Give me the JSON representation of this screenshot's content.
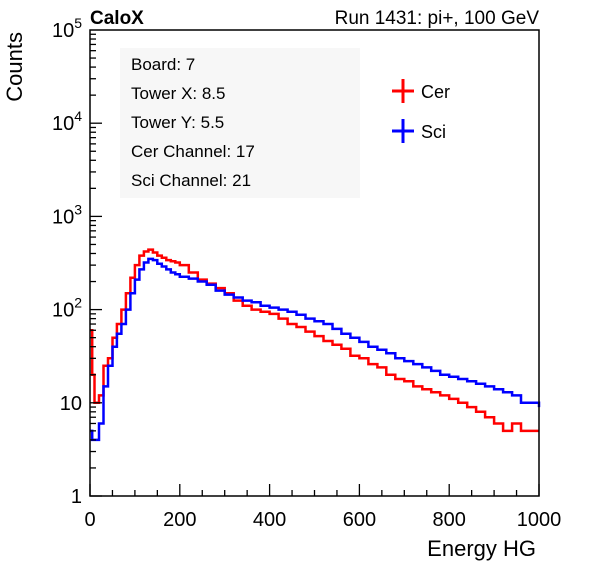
{
  "header": {
    "experiment": "CaloX",
    "run_info": "Run 1431: pi+, 100 GeV"
  },
  "info_box": [
    "Board: 7",
    "Tower X: 8.5",
    "Tower Y: 5.5",
    "Cer Channel: 17",
    "Sci Channel: 21"
  ],
  "chart_data": {
    "type": "line",
    "style": "step histogram",
    "title": "",
    "xlabel": "Energy HG",
    "ylabel": "Counts",
    "xlim": [
      0,
      1000
    ],
    "ylim": [
      1,
      100000
    ],
    "yscale": "log",
    "grid": false,
    "legend_position": "top-right",
    "x_ticks": [
      0,
      200,
      400,
      600,
      800,
      1000
    ],
    "y_ticks": [
      {
        "value": 1,
        "base": "1",
        "exp": ""
      },
      {
        "value": 10,
        "base": "10",
        "exp": ""
      },
      {
        "value": 100,
        "base": "10",
        "exp": "2"
      },
      {
        "value": 1000,
        "base": "10",
        "exp": "3"
      },
      {
        "value": 10000,
        "base": "10",
        "exp": "4"
      },
      {
        "value": 100000,
        "base": "10",
        "exp": "5"
      }
    ],
    "series": [
      {
        "name": "Cer",
        "color": "#ff0000",
        "points": [
          [
            0,
            60
          ],
          [
            5,
            20
          ],
          [
            10,
            10
          ],
          [
            20,
            12
          ],
          [
            30,
            25
          ],
          [
            40,
            30
          ],
          [
            50,
            50
          ],
          [
            60,
            70
          ],
          [
            70,
            100
          ],
          [
            80,
            150
          ],
          [
            90,
            220
          ],
          [
            100,
            300
          ],
          [
            110,
            380
          ],
          [
            120,
            420
          ],
          [
            130,
            440
          ],
          [
            140,
            410
          ],
          [
            150,
            380
          ],
          [
            160,
            360
          ],
          [
            170,
            340
          ],
          [
            180,
            330
          ],
          [
            190,
            320
          ],
          [
            200,
            300
          ],
          [
            220,
            250
          ],
          [
            240,
            210
          ],
          [
            260,
            190
          ],
          [
            280,
            170
          ],
          [
            300,
            150
          ],
          [
            320,
            125
          ],
          [
            340,
            110
          ],
          [
            360,
            100
          ],
          [
            380,
            95
          ],
          [
            400,
            90
          ],
          [
            420,
            80
          ],
          [
            440,
            70
          ],
          [
            460,
            65
          ],
          [
            480,
            58
          ],
          [
            500,
            52
          ],
          [
            520,
            46
          ],
          [
            540,
            42
          ],
          [
            560,
            38
          ],
          [
            580,
            32
          ],
          [
            600,
            30
          ],
          [
            620,
            26
          ],
          [
            640,
            24
          ],
          [
            660,
            20
          ],
          [
            680,
            18
          ],
          [
            700,
            17
          ],
          [
            720,
            15
          ],
          [
            740,
            14
          ],
          [
            760,
            13
          ],
          [
            780,
            12
          ],
          [
            800,
            11
          ],
          [
            820,
            10
          ],
          [
            840,
            9
          ],
          [
            860,
            8
          ],
          [
            880,
            7
          ],
          [
            900,
            6
          ],
          [
            920,
            5
          ],
          [
            940,
            6
          ],
          [
            960,
            5
          ],
          [
            980,
            5
          ],
          [
            1000,
            5
          ]
        ]
      },
      {
        "name": "Sci",
        "color": "#0000ff",
        "points": [
          [
            0,
            5
          ],
          [
            5,
            4
          ],
          [
            10,
            4
          ],
          [
            20,
            6
          ],
          [
            30,
            15
          ],
          [
            40,
            25
          ],
          [
            50,
            40
          ],
          [
            60,
            55
          ],
          [
            70,
            70
          ],
          [
            80,
            100
          ],
          [
            90,
            150
          ],
          [
            100,
            210
          ],
          [
            110,
            270
          ],
          [
            120,
            320
          ],
          [
            130,
            350
          ],
          [
            140,
            340
          ],
          [
            150,
            310
          ],
          [
            160,
            290
          ],
          [
            170,
            270
          ],
          [
            180,
            250
          ],
          [
            190,
            240
          ],
          [
            200,
            225
          ],
          [
            220,
            215
          ],
          [
            240,
            200
          ],
          [
            260,
            185
          ],
          [
            280,
            160
          ],
          [
            300,
            145
          ],
          [
            320,
            135
          ],
          [
            340,
            125
          ],
          [
            360,
            120
          ],
          [
            380,
            110
          ],
          [
            400,
            105
          ],
          [
            420,
            100
          ],
          [
            440,
            95
          ],
          [
            460,
            88
          ],
          [
            480,
            80
          ],
          [
            500,
            75
          ],
          [
            520,
            70
          ],
          [
            540,
            62
          ],
          [
            560,
            55
          ],
          [
            580,
            50
          ],
          [
            600,
            45
          ],
          [
            620,
            40
          ],
          [
            640,
            37
          ],
          [
            660,
            34
          ],
          [
            680,
            30
          ],
          [
            700,
            28
          ],
          [
            720,
            26
          ],
          [
            740,
            24
          ],
          [
            760,
            22
          ],
          [
            780,
            20
          ],
          [
            800,
            19
          ],
          [
            820,
            18
          ],
          [
            840,
            17
          ],
          [
            860,
            16
          ],
          [
            880,
            15
          ],
          [
            900,
            14
          ],
          [
            920,
            13
          ],
          [
            940,
            12
          ],
          [
            960,
            10
          ],
          [
            980,
            10
          ],
          [
            1000,
            9
          ]
        ]
      }
    ]
  }
}
